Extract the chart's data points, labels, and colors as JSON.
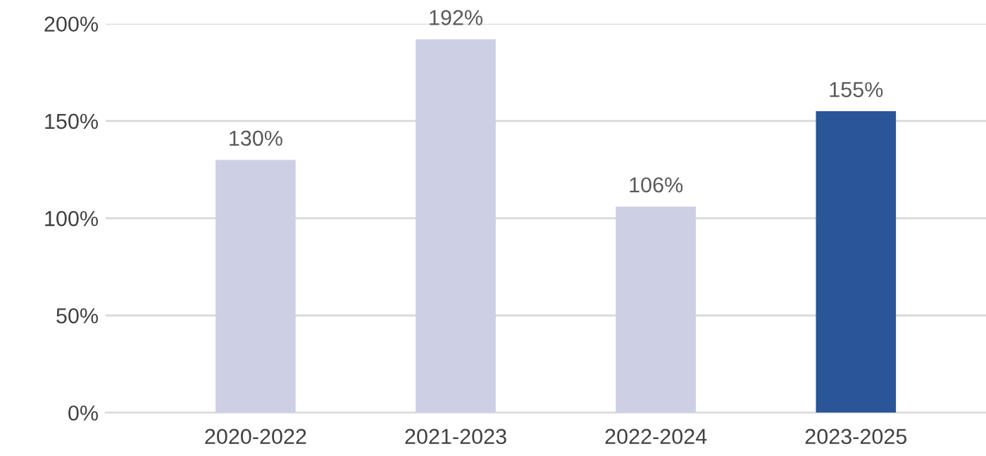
{
  "chart_data": {
    "type": "bar",
    "categories": [
      "2020-2022",
      "2021-2023",
      "2022-2024",
      "2023-2025"
    ],
    "values": [
      130,
      192,
      106,
      155
    ],
    "colors": [
      "#cdcfe4",
      "#cdcfe4",
      "#cdcfe4",
      "#2a5597"
    ],
    "value_labels": [
      "130%",
      "192%",
      "106%",
      "155%"
    ],
    "ylim": [
      0,
      200
    ],
    "yticks": [
      {
        "value": 0,
        "label": "0%"
      },
      {
        "value": 50,
        "label": "50%"
      },
      {
        "value": 100,
        "label": "100%"
      },
      {
        "value": 150,
        "label": "150%"
      },
      {
        "value": 200,
        "label": "200%"
      }
    ],
    "grid": "y",
    "legend": false
  }
}
